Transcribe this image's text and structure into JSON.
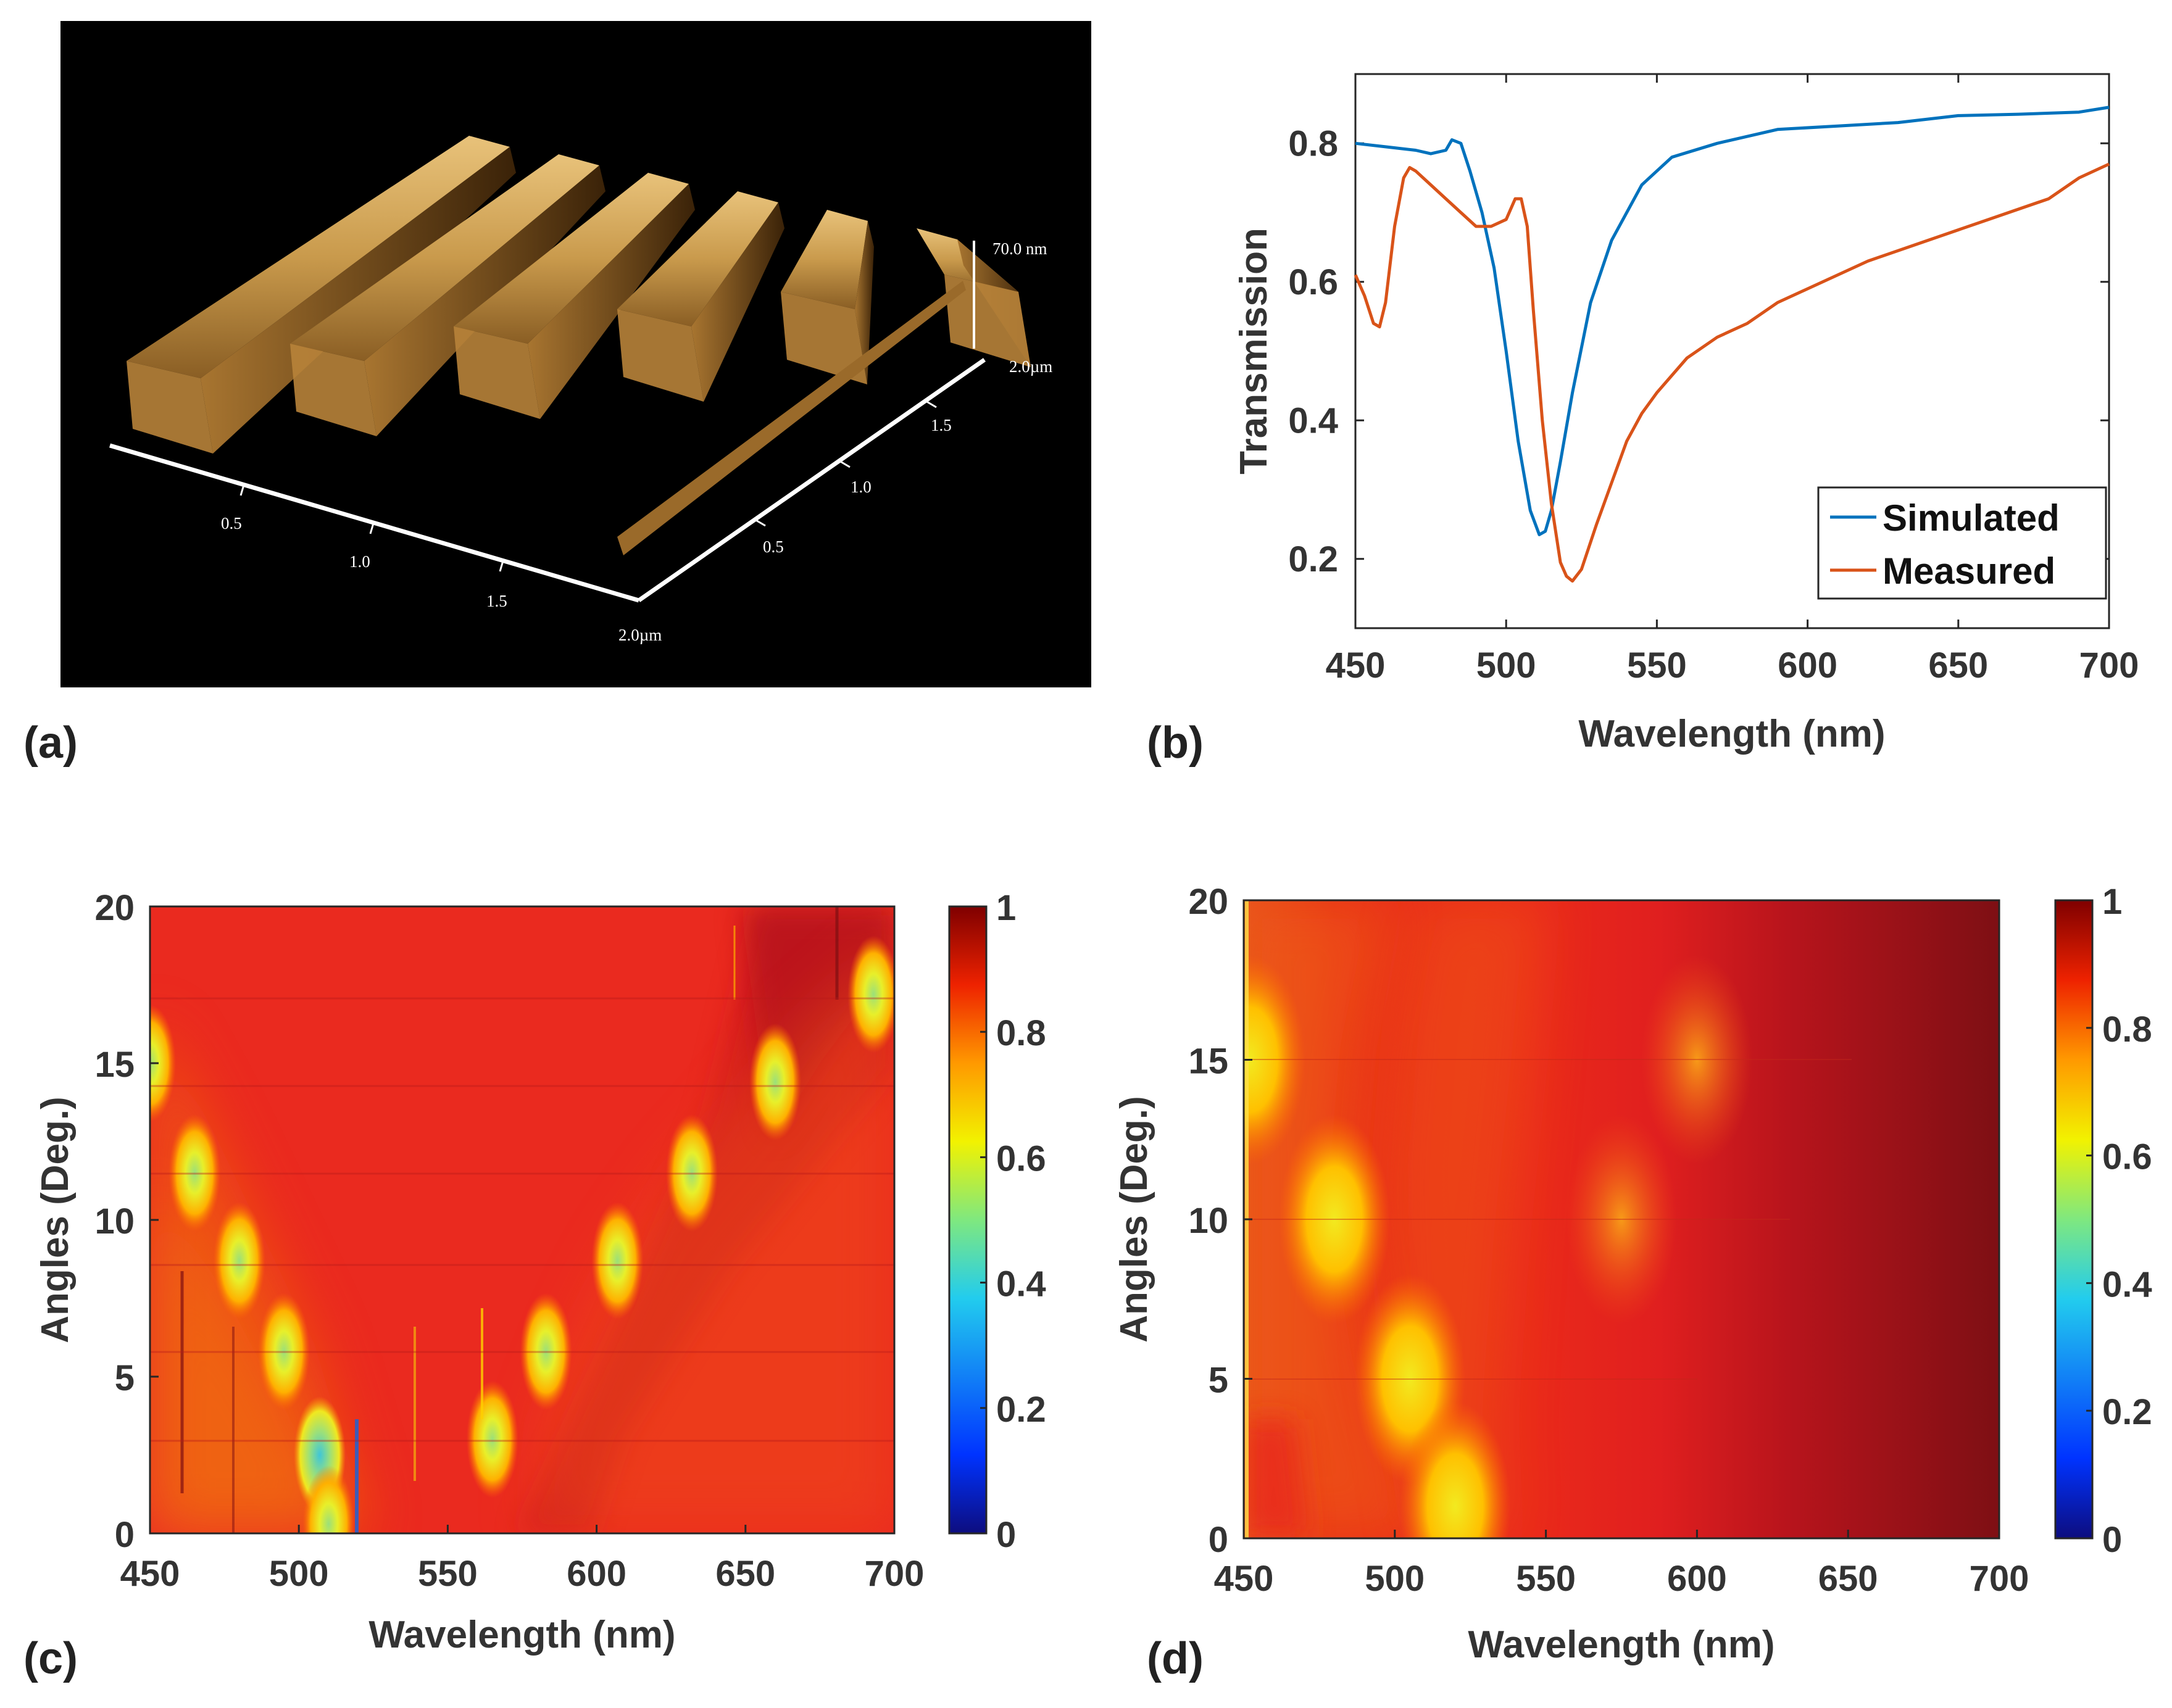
{
  "panels": {
    "a": {
      "label": "(a)",
      "z_label": "70.0 nm",
      "depth_label": "2.0µm",
      "width_label": "2.0µm",
      "x_ticks": [
        "0.5",
        "1.0",
        "1.5"
      ],
      "y_ticks": [
        "0.5",
        "1.0",
        "1.5"
      ]
    },
    "b": {
      "label": "(b)"
    },
    "c": {
      "label": "(c)"
    },
    "d": {
      "label": "(d)"
    }
  },
  "colors": {
    "simulated": "#0072bd",
    "measured": "#d95319"
  },
  "chart_data": [
    {
      "id": "b",
      "type": "line",
      "title": "",
      "xlabel": "Wavelength (nm)",
      "ylabel": "Transmission",
      "xlim": [
        450,
        700
      ],
      "ylim": [
        0.1,
        0.9
      ],
      "xticks": [
        450,
        500,
        550,
        600,
        650,
        700
      ],
      "yticks": [
        0.2,
        0.4,
        0.6,
        0.8
      ],
      "legend": "bottom-right",
      "series": [
        {
          "name": "Simulated",
          "x": [
            450,
            460,
            470,
            475,
            480,
            482,
            485,
            488,
            492,
            496,
            500,
            504,
            508,
            511,
            513,
            515,
            518,
            522,
            528,
            535,
            545,
            555,
            570,
            590,
            610,
            630,
            650,
            670,
            690,
            700
          ],
          "y": [
            0.8,
            0.795,
            0.79,
            0.785,
            0.79,
            0.805,
            0.8,
            0.76,
            0.7,
            0.62,
            0.5,
            0.37,
            0.27,
            0.235,
            0.24,
            0.27,
            0.34,
            0.44,
            0.57,
            0.66,
            0.74,
            0.78,
            0.8,
            0.82,
            0.825,
            0.83,
            0.84,
            0.842,
            0.845,
            0.852
          ]
        },
        {
          "name": "Measured",
          "x": [
            450,
            453,
            456,
            458,
            460,
            463,
            466,
            468,
            470,
            475,
            480,
            485,
            490,
            495,
            500,
            503,
            505,
            507,
            509,
            512,
            515,
            518,
            520,
            522,
            525,
            530,
            535,
            540,
            545,
            550,
            560,
            570,
            580,
            590,
            600,
            620,
            640,
            660,
            680,
            690,
            700
          ],
          "y": [
            0.61,
            0.58,
            0.54,
            0.535,
            0.57,
            0.68,
            0.75,
            0.765,
            0.76,
            0.74,
            0.72,
            0.7,
            0.68,
            0.68,
            0.69,
            0.72,
            0.72,
            0.68,
            0.56,
            0.4,
            0.28,
            0.195,
            0.175,
            0.168,
            0.185,
            0.25,
            0.31,
            0.37,
            0.41,
            0.44,
            0.49,
            0.52,
            0.54,
            0.57,
            0.59,
            0.63,
            0.66,
            0.69,
            0.72,
            0.75,
            0.77
          ]
        }
      ]
    },
    {
      "id": "c",
      "type": "heatmap",
      "title": "",
      "xlabel": "Wavelength (nm)",
      "ylabel": "Angles (Deg.)",
      "xlim": [
        450,
        700
      ],
      "ylim": [
        0,
        20
      ],
      "xticks": [
        450,
        500,
        550,
        600,
        650,
        700
      ],
      "yticks": [
        0,
        5,
        10,
        15,
        20
      ],
      "colorbar": {
        "range": [
          0,
          1
        ],
        "ticks": [
          0,
          0.2,
          0.4,
          0.6,
          0.8,
          1
        ]
      },
      "background_value": 0.9,
      "features": [
        {
          "wavelength": 450,
          "angle": 15.0,
          "value": 0.7
        },
        {
          "wavelength": 465,
          "angle": 11.5,
          "value": 0.6
        },
        {
          "wavelength": 480,
          "angle": 8.7,
          "value": 0.6
        },
        {
          "wavelength": 495,
          "angle": 5.8,
          "value": 0.55
        },
        {
          "wavelength": 507,
          "angle": 2.5,
          "value": 0.3
        },
        {
          "wavelength": 510,
          "angle": 0.3,
          "value": 0.45
        },
        {
          "wavelength": 565,
          "angle": 3.0,
          "value": 0.55
        },
        {
          "wavelength": 583,
          "angle": 5.8,
          "value": 0.5
        },
        {
          "wavelength": 607,
          "angle": 8.7,
          "value": 0.45
        },
        {
          "wavelength": 632,
          "angle": 11.5,
          "value": 0.5
        },
        {
          "wavelength": 660,
          "angle": 14.4,
          "value": 0.5
        },
        {
          "wavelength": 693,
          "angle": 17.2,
          "value": 0.55
        }
      ]
    },
    {
      "id": "d",
      "type": "heatmap",
      "title": "",
      "xlabel": "Wavelength (nm)",
      "ylabel": "Angles (Deg.)",
      "xlim": [
        450,
        700
      ],
      "ylim": [
        0,
        20
      ],
      "xticks": [
        450,
        500,
        550,
        600,
        650,
        700
      ],
      "yticks": [
        0,
        5,
        10,
        15,
        20
      ],
      "colorbar": {
        "range": [
          0,
          1
        ],
        "ticks": [
          0,
          0.2,
          0.4,
          0.6,
          0.8,
          1
        ]
      },
      "background_value": 0.85,
      "features": [
        {
          "wavelength": 452,
          "angle": 15.0,
          "value": 0.65
        },
        {
          "wavelength": 480,
          "angle": 10.0,
          "value": 0.65
        },
        {
          "wavelength": 505,
          "angle": 5.0,
          "value": 0.6
        },
        {
          "wavelength": 520,
          "angle": 1.0,
          "value": 0.55
        },
        {
          "wavelength": 575,
          "angle": 10.0,
          "value": 0.8
        },
        {
          "wavelength": 600,
          "angle": 15.0,
          "value": 0.85
        }
      ]
    }
  ]
}
